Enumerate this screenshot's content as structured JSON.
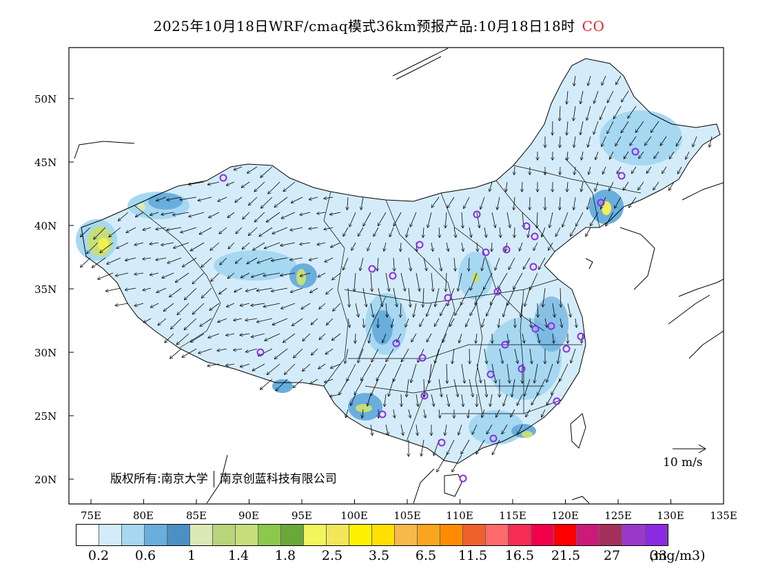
{
  "title": {
    "text": "2025年10月18日WRF/cmaq模式36km预报产品:10月18日18时",
    "species": "CO",
    "species_color": "#e0242b"
  },
  "map": {
    "lat_labels": [
      "50N",
      "45N",
      "40N",
      "35N",
      "30N",
      "25N",
      "20N"
    ],
    "lon_labels": [
      "75E",
      "80E",
      "85E",
      "90E",
      "95E",
      "100E",
      "105E",
      "110E",
      "115E",
      "120E",
      "125E",
      "130E",
      "135E"
    ],
    "wind_scale_label": "10 m/s",
    "copyright_left": "版权所有:南京大学",
    "copyright_right": "南京创蓝科技有限公司",
    "colors": {
      "land_light": "#d4ecf9",
      "land_mid": "#a6d8f2",
      "land_blue": "#6aaedd",
      "hotspot_green": "#c6de7a",
      "hotspot_yellow": "#f2ef52",
      "station_marker": "#8a2be2"
    }
  },
  "legend": {
    "unit": "(mg/m3)",
    "labels": [
      "0.2",
      "0.6",
      "1",
      "1.4",
      "1.8",
      "2.5",
      "3.5",
      "6.5",
      "11.5",
      "16.5",
      "21.5",
      "27",
      "33"
    ],
    "colors": [
      "#ffffff",
      "#d4ecf9",
      "#a6d8f2",
      "#6aaedd",
      "#4b8fc4",
      "#dbe9b8",
      "#b9d47a",
      "#c6de7a",
      "#8cc84b",
      "#6aa83a",
      "#f2f55b",
      "#f2e65a",
      "#fff200",
      "#ffe000",
      "#f8b84a",
      "#f9a61e",
      "#ff8c00",
      "#f0602c",
      "#ff6a6a",
      "#f72d55",
      "#f3004a",
      "#ff0000",
      "#cc1a7a",
      "#a3315c",
      "#9a39c9",
      "#8a2be2"
    ]
  }
}
